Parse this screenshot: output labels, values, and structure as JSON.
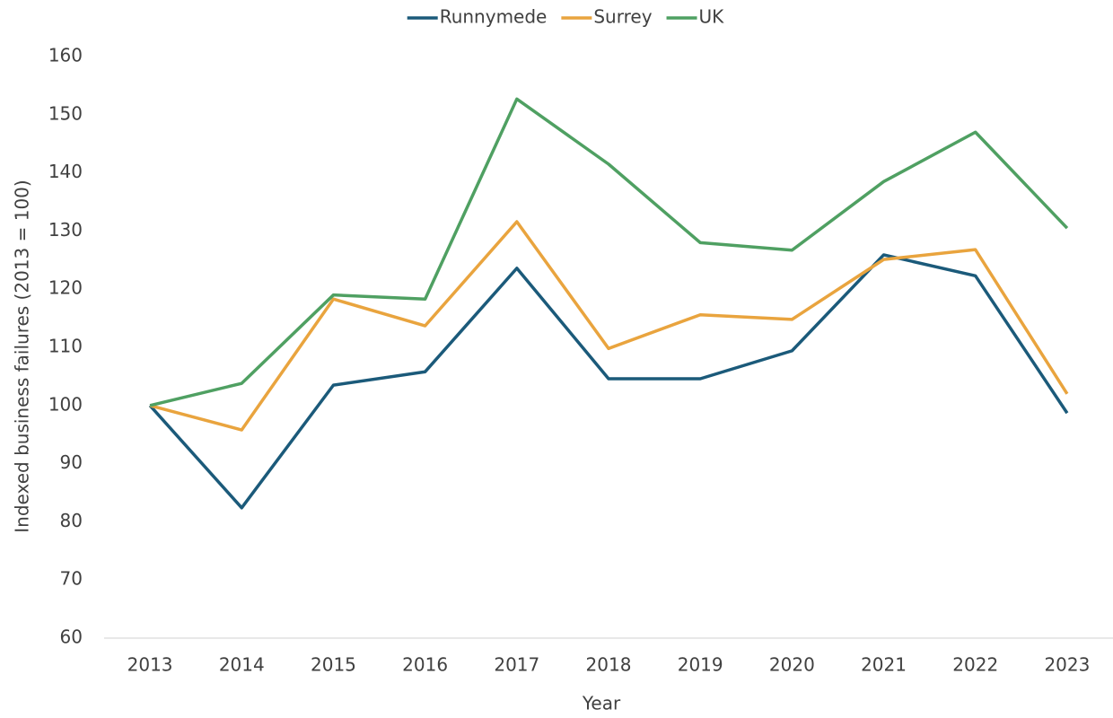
{
  "chart_data": {
    "type": "line",
    "x_label": "Year",
    "y_label": "Indexed business failures (2013 = 100)",
    "categories": [
      "2013",
      "2014",
      "2015",
      "2016",
      "2017",
      "2018",
      "2019",
      "2020",
      "2021",
      "2022",
      "2023"
    ],
    "series": [
      {
        "name": "Runnymede",
        "color": "#1b5a7a",
        "values": [
          100,
          82.4,
          103.5,
          105.8,
          123.6,
          104.6,
          104.6,
          109.4,
          125.9,
          122.3,
          98.7
        ]
      },
      {
        "name": "Surrey",
        "color": "#e9a43e",
        "values": [
          100,
          95.8,
          118.3,
          113.7,
          131.6,
          109.8,
          115.6,
          114.8,
          125.1,
          126.8,
          102
        ]
      },
      {
        "name": "UK",
        "color": "#4fa062",
        "values": [
          100,
          103.8,
          119,
          118.3,
          152.7,
          141.5,
          128,
          126.7,
          138.5,
          147,
          130.5
        ]
      }
    ],
    "ylim": [
      60,
      160
    ],
    "yticks": [
      60,
      70,
      80,
      90,
      100,
      110,
      120,
      130,
      140,
      150,
      160
    ],
    "legend": "top"
  }
}
